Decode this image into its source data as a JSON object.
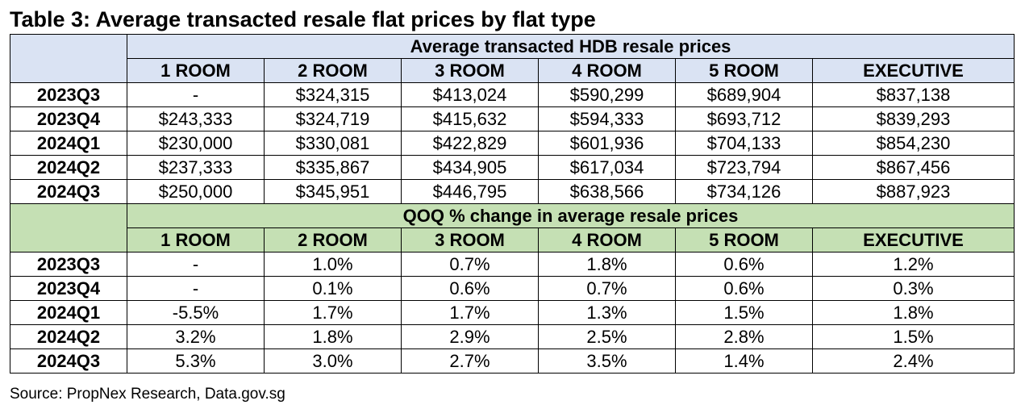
{
  "title": "Table 3: Average transacted resale flat prices by flat type",
  "columns": [
    "1 ROOM",
    "2 ROOM",
    "3 ROOM",
    "4 ROOM",
    "5 ROOM",
    "EXECUTIVE"
  ],
  "prices": {
    "header": "Average transacted HDB resale prices",
    "rows": [
      {
        "quarter": "2023Q3",
        "values": [
          "-",
          "$324,315",
          "$413,024",
          "$590,299",
          "$689,904",
          "$837,138"
        ]
      },
      {
        "quarter": "2023Q4",
        "values": [
          "$243,333",
          "$324,719",
          "$415,632",
          "$594,333",
          "$693,712",
          "$839,293"
        ]
      },
      {
        "quarter": "2024Q1",
        "values": [
          "$230,000",
          "$330,081",
          "$422,829",
          "$601,936",
          "$704,133",
          "$854,230"
        ]
      },
      {
        "quarter": "2024Q2",
        "values": [
          "$237,333",
          "$335,867",
          "$434,905",
          "$617,034",
          "$723,794",
          "$867,456"
        ]
      },
      {
        "quarter": "2024Q3",
        "values": [
          "$250,000",
          "$345,951",
          "$446,795",
          "$638,566",
          "$734,126",
          "$887,923"
        ]
      }
    ]
  },
  "qoq": {
    "header": "QOQ % change in average resale prices",
    "rows": [
      {
        "quarter": "2023Q3",
        "values": [
          "-",
          "1.0%",
          "0.7%",
          "1.8%",
          "0.6%",
          "1.2%"
        ]
      },
      {
        "quarter": "2023Q4",
        "values": [
          "-",
          "0.1%",
          "0.6%",
          "0.7%",
          "0.6%",
          "0.3%"
        ]
      },
      {
        "quarter": "2024Q1",
        "values": [
          "-5.5%",
          "1.7%",
          "1.7%",
          "1.3%",
          "1.5%",
          "1.8%"
        ]
      },
      {
        "quarter": "2024Q2",
        "values": [
          "3.2%",
          "1.8%",
          "2.9%",
          "2.5%",
          "2.8%",
          "1.5%"
        ]
      },
      {
        "quarter": "2024Q3",
        "values": [
          "5.3%",
          "3.0%",
          "2.7%",
          "3.5%",
          "1.4%",
          "2.4%"
        ]
      }
    ]
  },
  "colors": {
    "prices_header_bg": "#dae3f3",
    "qoq_header_bg": "#c5e0b4"
  },
  "source": "Source: PropNex Research, Data.gov.sg"
}
